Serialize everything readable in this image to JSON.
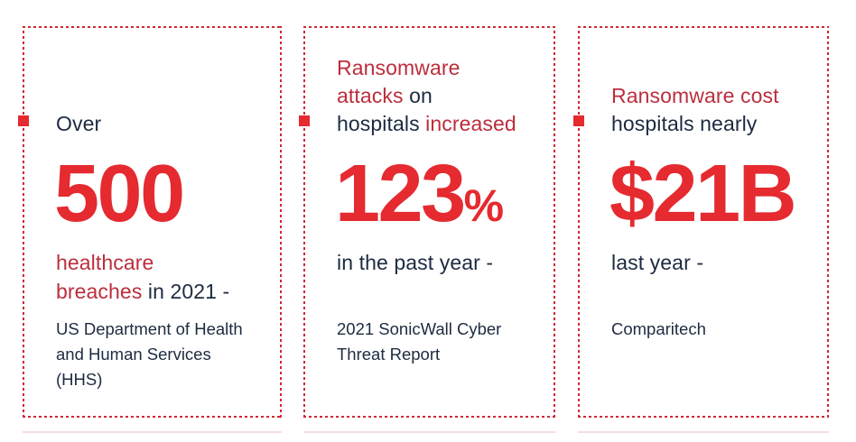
{
  "colors": {
    "bright_red": "#e52a30",
    "crimson": "#bb2e3d",
    "navy": "#1d2b40",
    "border_red": "#cf2936",
    "background": "#ffffff"
  },
  "cards": [
    {
      "intro": [
        [
          {
            "text": "Over",
            "color": "navy"
          }
        ]
      ],
      "stat": "500",
      "stat_suffix": "",
      "tagline": [
        [
          {
            "text": "healthcare",
            "color": "red"
          }
        ],
        [
          {
            "text": "breaches",
            "color": "red"
          },
          {
            "text": " in 2021 -",
            "color": "navy"
          }
        ]
      ],
      "source_lines": [
        "US Department of Health",
        "and Human Services",
        "(HHS)"
      ]
    },
    {
      "intro": [
        [
          {
            "text": "Ransomware",
            "color": "red"
          }
        ],
        [
          {
            "text": "attacks",
            "color": "red"
          },
          {
            "text": " on",
            "color": "navy"
          }
        ],
        [
          {
            "text": "hospitals",
            "color": "navy"
          },
          {
            "text": " increased",
            "color": "red"
          }
        ]
      ],
      "stat": "123",
      "stat_suffix": "%",
      "tagline": [
        [
          {
            "text": "in the past year -",
            "color": "navy"
          }
        ]
      ],
      "source_lines": [
        "2021 SonicWall Cyber",
        "Threat Report"
      ]
    },
    {
      "intro": [
        [
          {
            "text": "Ransomware cost",
            "color": "red"
          }
        ],
        [
          {
            "text": "hospitals nearly",
            "color": "navy"
          }
        ]
      ],
      "stat": "$21B",
      "stat_suffix": "",
      "tagline": [
        [
          {
            "text": "last year -",
            "color": "navy"
          }
        ]
      ],
      "source_lines": [
        "Comparitech"
      ]
    }
  ]
}
